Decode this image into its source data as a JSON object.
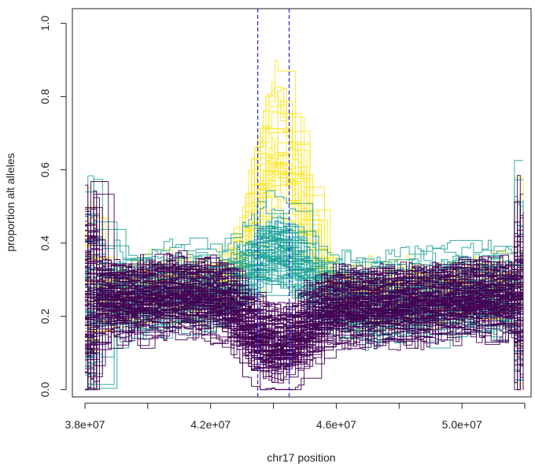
{
  "chart_data": {
    "type": "line",
    "title": "",
    "xlabel": "chr17 position",
    "ylabel": "proportion alt alleles",
    "xlim": [
      37600000,
      52200000
    ],
    "ylim": [
      -0.02,
      1.04
    ],
    "x_ticks": [
      {
        "value": 38000000,
        "label": "3.8e+07"
      },
      {
        "value": 42000000,
        "label": "4.2e+07"
      },
      {
        "value": 46000000,
        "label": "4.6e+07"
      },
      {
        "value": 50000000,
        "label": "5.0e+07"
      }
    ],
    "x_minor_ticks": [
      40000000,
      44000000,
      48000000,
      52000000
    ],
    "y_ticks": [
      {
        "value": 0.0,
        "label": "0.0"
      },
      {
        "value": 0.2,
        "label": "0.2"
      },
      {
        "value": 0.4,
        "label": "0.4"
      },
      {
        "value": 0.6,
        "label": "0.6"
      },
      {
        "value": 0.8,
        "label": "0.8"
      },
      {
        "value": 1.0,
        "label": "1.0"
      }
    ],
    "grid": false,
    "legend": "none",
    "vlines": [
      {
        "x": 43500000,
        "color": "#2222dd",
        "style": "dashed"
      },
      {
        "x": 44500000,
        "color": "#2222dd",
        "style": "dashed"
      }
    ],
    "x": [
      38000000,
      38500000,
      39000000,
      40000000,
      41000000,
      42000000,
      42500000,
      43000000,
      43500000,
      44000000,
      44500000,
      45000000,
      45500000,
      46000000,
      47000000,
      48000000,
      49000000,
      50000000,
      51000000,
      51500000,
      52000000
    ],
    "series": [
      {
        "group": "high",
        "color": "#fde725",
        "count": 35,
        "values": [
          0.28,
          0.27,
          0.27,
          0.29,
          0.29,
          0.28,
          0.32,
          0.4,
          0.58,
          0.7,
          0.6,
          0.45,
          0.33,
          0.27,
          0.26,
          0.27,
          0.27,
          0.28,
          0.29,
          0.28,
          0.29
        ]
      },
      {
        "group": "mid",
        "color": "#21a39a",
        "count": 70,
        "values": [
          0.27,
          0.27,
          0.26,
          0.27,
          0.28,
          0.27,
          0.28,
          0.32,
          0.38,
          0.4,
          0.37,
          0.31,
          0.27,
          0.25,
          0.24,
          0.25,
          0.26,
          0.27,
          0.27,
          0.27,
          0.27
        ]
      },
      {
        "group": "low",
        "color": "#440154",
        "count": 110,
        "values": [
          0.26,
          0.26,
          0.25,
          0.26,
          0.27,
          0.26,
          0.24,
          0.18,
          0.14,
          0.12,
          0.14,
          0.18,
          0.22,
          0.24,
          0.24,
          0.24,
          0.25,
          0.26,
          0.26,
          0.26,
          0.26
        ]
      }
    ]
  }
}
